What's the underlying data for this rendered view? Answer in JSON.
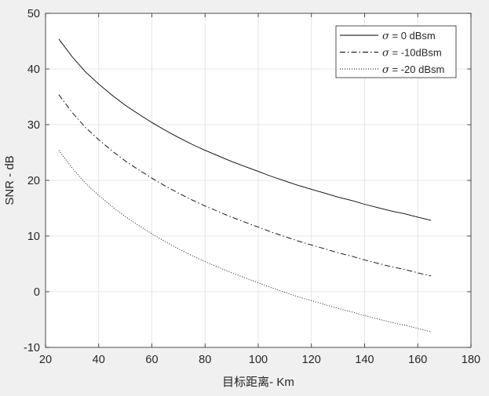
{
  "chart_data": {
    "type": "line",
    "title": "",
    "xlabel": "目标距离- Km",
    "ylabel": "SNR - dB",
    "xlim": [
      20,
      180
    ],
    "ylim": [
      -10,
      50
    ],
    "xticks": [
      20,
      40,
      60,
      80,
      100,
      120,
      140,
      160,
      180
    ],
    "yticks": [
      -10,
      0,
      10,
      20,
      30,
      40,
      50
    ],
    "xtick_labels": [
      "20",
      "40",
      "60",
      "80",
      "100",
      "120",
      "140",
      "160",
      "180"
    ],
    "ytick_labels": [
      "-10",
      "0",
      "10",
      "20",
      "30",
      "40",
      "50"
    ],
    "grid": true,
    "legend_position": "top-right",
    "x": [
      25,
      30,
      35,
      40,
      45,
      50,
      55,
      60,
      65,
      70,
      75,
      80,
      85,
      90,
      95,
      100,
      105,
      110,
      115,
      120,
      125,
      130,
      135,
      140,
      145,
      150,
      155,
      160,
      165
    ],
    "series": [
      {
        "name": "σ = 0 dBsm",
        "symbol": "σ",
        "label_rest": " = 0 dBsm",
        "style": "solid",
        "color": "#000000",
        "values": [
          45.4,
          42.2,
          39.5,
          37.3,
          35.3,
          33.5,
          31.9,
          30.4,
          29.0,
          27.7,
          26.5,
          25.4,
          24.4,
          23.4,
          22.5,
          21.6,
          20.7,
          19.9,
          19.1,
          18.4,
          17.7,
          17.0,
          16.4,
          15.7,
          15.1,
          14.5,
          14.0,
          13.4,
          12.8
        ]
      },
      {
        "name": "σ = -10dBsm",
        "symbol": "σ",
        "label_rest": " = -10dBsm",
        "style": "dashdot",
        "color": "#000000",
        "values": [
          35.4,
          32.2,
          29.5,
          27.3,
          25.3,
          23.5,
          21.9,
          20.4,
          19.0,
          17.7,
          16.5,
          15.4,
          14.4,
          13.4,
          12.5,
          11.6,
          10.7,
          9.9,
          9.1,
          8.4,
          7.7,
          7.0,
          6.4,
          5.7,
          5.1,
          4.5,
          4.0,
          3.4,
          2.8
        ]
      },
      {
        "name": "σ = -20 dBsm",
        "symbol": "σ",
        "label_rest": " = -20 dBsm",
        "style": "dotted",
        "color": "#000000",
        "values": [
          25.4,
          22.2,
          19.5,
          17.3,
          15.3,
          13.5,
          11.9,
          10.4,
          9.0,
          7.7,
          6.5,
          5.4,
          4.4,
          3.4,
          2.5,
          1.6,
          0.7,
          -0.1,
          -0.9,
          -1.6,
          -2.3,
          -3.0,
          -3.6,
          -4.3,
          -4.9,
          -5.5,
          -6.0,
          -6.6,
          -7.2
        ]
      }
    ]
  }
}
